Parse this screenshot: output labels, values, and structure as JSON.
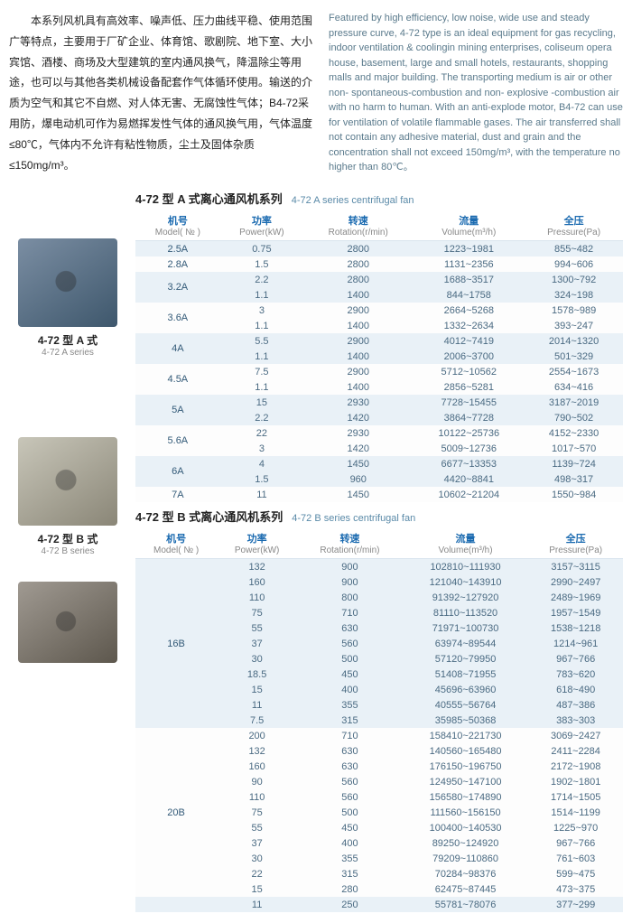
{
  "intro_cn": "　　本系列风机具有高效率、噪声低、压力曲线平稳、使用范围广等特点，主要用于厂矿企业、体育馆、歌剧院、地下室、大小宾馆、酒楼、商场及大型建筑的室内通风换气，降温除尘等用途，也可以与其他各类机械设备配套作气体循环使用。输送的介质为空气和其它不自燃、对人体无害、无腐蚀性气体；B4-72采用防，爆电动机可作为易燃挥发性气体的通风换气用，气体温度≤80℃，气体内不允许有粘性物质，尘土及固体杂质≤150mg/m³。",
  "intro_en": "Featured by high efficiency, low noise, wide use and steady pressure curve, 4-72 type is an ideal equipment for gas recycling, indoor ventilation & coolingin mining enterprises, coliseum opera house, basement, large and small hotels, restaurants, shopping malls and major building. The transporting medium is air or other non- spontaneous-combustion and non- explosive -combustion air with no harm to human. With an anti-explode motor, B4-72 can use for ventilation of volatile flammable gases. The air transferred shall not contain any adhesive material, dust and grain and the concentration shall not exceed 150mg/m³, with the temperature no higher than 80℃。",
  "thumbs": [
    {
      "cn": "4-72 型 A 式",
      "en": "4-72 A series"
    },
    {
      "cn": "4-72 型 B 式",
      "en": "4-72 B series"
    },
    {
      "cn": "",
      "en": ""
    }
  ],
  "tableA": {
    "title_cn": "4-72 型 A 式离心通风机系列",
    "title_en": "4-72 A series centrifugal fan",
    "headers": {
      "model_cn": "机号",
      "model_en": "Model( № )",
      "power_cn": "功率",
      "power_en": "Power(kW)",
      "rot_cn": "转速",
      "rot_en": "Rotation(r/min)",
      "vol_cn": "流量",
      "vol_en": "Volume(m³/h)",
      "press_cn": "全压",
      "press_en": "Pressure(Pa)"
    },
    "rows": [
      {
        "model": "2.5A",
        "span": 1,
        "vals": [
          [
            "0.75",
            "2800",
            "1223~1981",
            "855~482"
          ]
        ]
      },
      {
        "model": "2.8A",
        "span": 1,
        "vals": [
          [
            "1.5",
            "2800",
            "1131~2356",
            "994~606"
          ]
        ]
      },
      {
        "model": "3.2A",
        "span": 2,
        "vals": [
          [
            "2.2",
            "2800",
            "1688~3517",
            "1300~792"
          ],
          [
            "1.1",
            "1400",
            "844~1758",
            "324~198"
          ]
        ]
      },
      {
        "model": "3.6A",
        "span": 2,
        "vals": [
          [
            "3",
            "2900",
            "2664~5268",
            "1578~989"
          ],
          [
            "1.1",
            "1400",
            "1332~2634",
            "393~247"
          ]
        ]
      },
      {
        "model": "4A",
        "span": 2,
        "vals": [
          [
            "5.5",
            "2900",
            "4012~7419",
            "2014~1320"
          ],
          [
            "1.1",
            "1400",
            "2006~3700",
            "501~329"
          ]
        ]
      },
      {
        "model": "4.5A",
        "span": 2,
        "vals": [
          [
            "7.5",
            "2900",
            "5712~10562",
            "2554~1673"
          ],
          [
            "1.1",
            "1400",
            "2856~5281",
            "634~416"
          ]
        ]
      },
      {
        "model": "5A",
        "span": 2,
        "vals": [
          [
            "15",
            "2930",
            "7728~15455",
            "3187~2019"
          ],
          [
            "2.2",
            "1420",
            "3864~7728",
            "790~502"
          ]
        ]
      },
      {
        "model": "5.6A",
        "span": 2,
        "vals": [
          [
            "22",
            "2930",
            "10122~25736",
            "4152~2330"
          ],
          [
            "3",
            "1420",
            "5009~12736",
            "1017~570"
          ]
        ]
      },
      {
        "model": "6A",
        "span": 2,
        "vals": [
          [
            "4",
            "1450",
            "6677~13353",
            "1139~724"
          ],
          [
            "1.5",
            "960",
            "4420~8841",
            "498~317"
          ]
        ]
      },
      {
        "model": "7A",
        "span": 1,
        "vals": [
          [
            "11",
            "1450",
            "10602~21204",
            "1550~984"
          ]
        ]
      }
    ]
  },
  "tableB": {
    "title_cn": "4-72 型 B 式离心通风机系列",
    "title_en": "4-72 B series centrifugal fan",
    "rows": [
      {
        "model": "16B",
        "span": 11,
        "vals": [
          [
            "132",
            "900",
            "102810~111930",
            "3157~3115"
          ],
          [
            "160",
            "900",
            "121040~143910",
            "2990~2497"
          ],
          [
            "110",
            "800",
            "91392~127920",
            "2489~1969"
          ],
          [
            "75",
            "710",
            "81110~113520",
            "1957~1549"
          ],
          [
            "55",
            "630",
            "71971~100730",
            "1538~1218"
          ],
          [
            "37",
            "560",
            "63974~89544",
            "1214~961"
          ],
          [
            "30",
            "500",
            "57120~79950",
            "967~766"
          ],
          [
            "18.5",
            "450",
            "51408~71955",
            "783~620"
          ],
          [
            "15",
            "400",
            "45696~63960",
            "618~490"
          ],
          [
            "11",
            "355",
            "40555~56764",
            "487~386"
          ],
          [
            "7.5",
            "315",
            "35985~50368",
            "383~303"
          ]
        ]
      },
      {
        "model": "20B",
        "span": 11,
        "vals": [
          [
            "200",
            "710",
            "158410~221730",
            "3069~2427"
          ],
          [
            "132",
            "630",
            "140560~165480",
            "2411~2284"
          ],
          [
            "160",
            "630",
            "176150~196750",
            "2172~1908"
          ],
          [
            "90",
            "560",
            "124950~147100",
            "1902~1801"
          ],
          [
            "110",
            "560",
            "156580~174890",
            "1714~1505"
          ],
          [
            "75",
            "500",
            "111560~156150",
            "1514~1199"
          ],
          [
            "55",
            "450",
            "100400~140530",
            "1225~970"
          ],
          [
            "37",
            "400",
            "89250~124920",
            "967~766"
          ],
          [
            "30",
            "355",
            "79209~110860",
            "761~603"
          ],
          [
            "22",
            "315",
            "70284~98376",
            "599~475"
          ],
          [
            "15",
            "280",
            "62475~87445",
            "473~375"
          ]
        ]
      },
      {
        "model": "",
        "span": 1,
        "vals": [
          [
            "11",
            "250",
            "55781~78076",
            "377~299"
          ]
        ]
      }
    ]
  }
}
